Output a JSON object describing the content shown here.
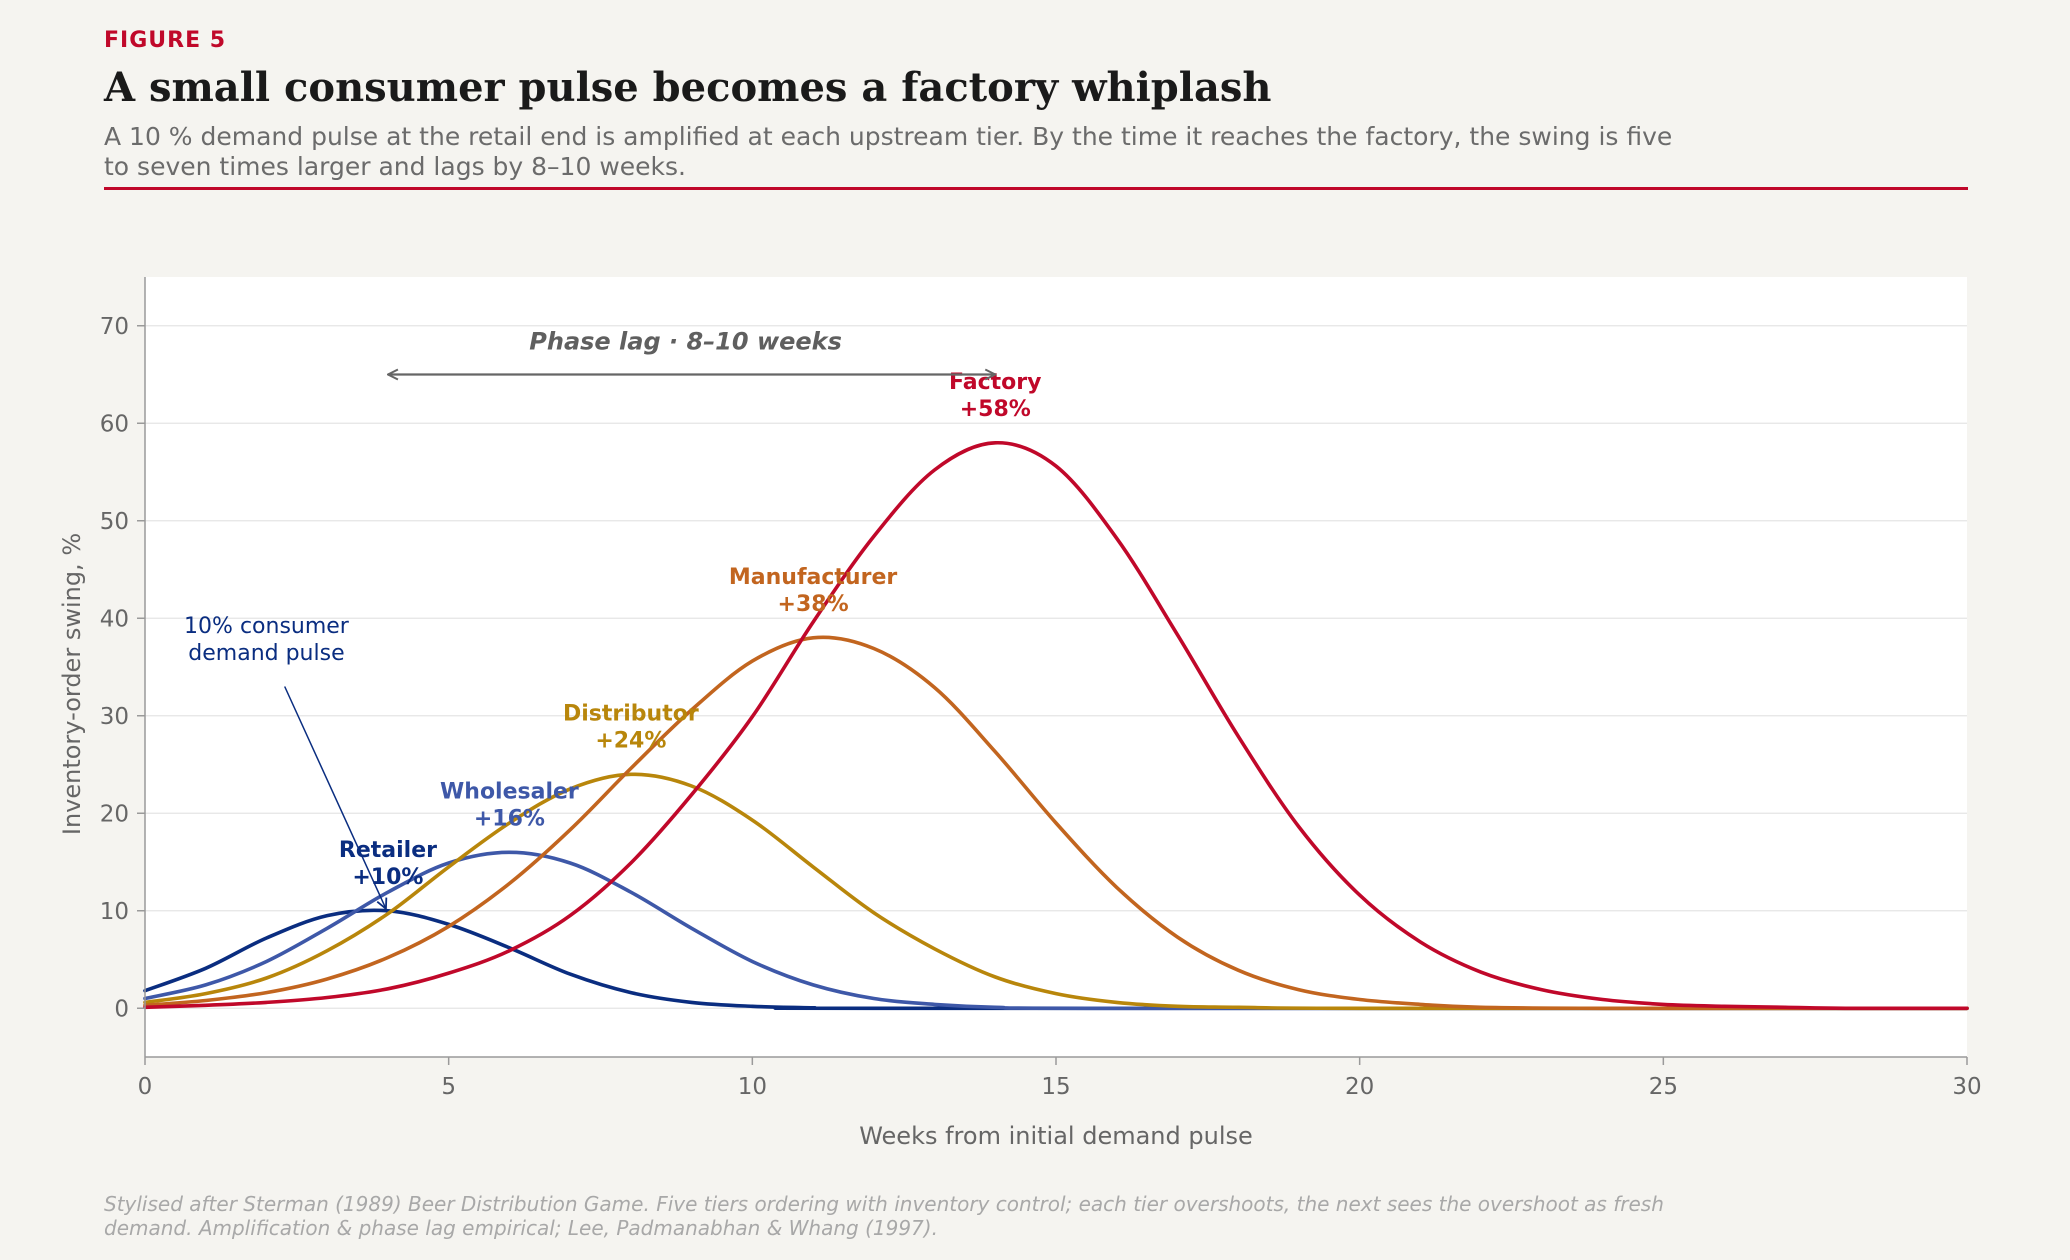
{
  "header": {
    "kicker": "FIGURE 5",
    "title": "A small consumer pulse becomes a factory whiplash",
    "subtitle": "A 10 % demand pulse at the retail end is amplified at each upstream tier. By the time it reaches the factory, the swing is five to seven times larger and lags by 8–10 weeks."
  },
  "footnote": "Stylised after Sterman (1989) Beer Distribution Game. Five tiers ordering with inventory control; each tier overshoots, the next sees the overshoot as fresh demand. Amplification & phase lag empirical; Lee, Padmanabhan & Whang (1997).",
  "chart_data": {
    "type": "line",
    "xlabel": "Weeks from initial demand pulse",
    "ylabel": "Inventory-order swing, %",
    "xlim": [
      0,
      30
    ],
    "ylim": [
      -5,
      75
    ],
    "xticks": [
      0,
      5,
      10,
      15,
      20,
      25,
      30
    ],
    "yticks": [
      0,
      10,
      20,
      30,
      40,
      50,
      60,
      70
    ],
    "grid": "horizontal",
    "series": [
      {
        "name": "Retailer",
        "label": "+10%",
        "color": "#0a2d80",
        "x": [
          0,
          1,
          2,
          3,
          4,
          5,
          6,
          7,
          8,
          9,
          10,
          11,
          12
        ],
        "y": [
          1.8,
          4.1,
          7.2,
          9.5,
          10.0,
          8.6,
          6.2,
          3.5,
          1.6,
          0.6,
          0.2,
          0.05,
          0.0
        ]
      },
      {
        "name": "Wholesaler",
        "label": "+16%",
        "color": "#3e58a8",
        "x": [
          0,
          1,
          2,
          3,
          4,
          5,
          6,
          7,
          8,
          9,
          10,
          11,
          12,
          13,
          14,
          16
        ],
        "y": [
          1.0,
          2.4,
          4.8,
          8.2,
          11.9,
          14.9,
          16.0,
          14.9,
          11.9,
          8.2,
          4.8,
          2.4,
          1.0,
          0.4,
          0.1,
          0.0
        ]
      },
      {
        "name": "Distributor",
        "label": "+24%",
        "color": "#b8860b",
        "x": [
          0,
          1,
          2,
          3,
          4,
          5,
          6,
          7,
          8,
          9,
          10,
          11,
          12,
          13,
          14,
          15,
          16,
          17,
          18,
          20
        ],
        "y": [
          0.6,
          1.5,
          3.1,
          5.9,
          9.7,
          14.5,
          19.0,
          22.5,
          24.0,
          22.8,
          19.3,
          14.5,
          9.8,
          6.1,
          3.2,
          1.5,
          0.6,
          0.2,
          0.1,
          0.0
        ]
      },
      {
        "name": "Manufacturer",
        "label": "+38%",
        "color": "#c2651f",
        "x": [
          0,
          1,
          2,
          3,
          4,
          5,
          6,
          7,
          8,
          9,
          10,
          11,
          12,
          13,
          14,
          15,
          16,
          17,
          18,
          19,
          20,
          21,
          22,
          24
        ],
        "y": [
          0.3,
          0.8,
          1.6,
          3.0,
          5.2,
          8.4,
          12.8,
          18.3,
          24.6,
          30.6,
          35.6,
          38.0,
          36.9,
          32.9,
          26.3,
          19.0,
          12.4,
          7.3,
          3.9,
          1.9,
          0.9,
          0.4,
          0.1,
          0.0
        ]
      },
      {
        "name": "Factory",
        "label": "+58%",
        "color": "#c0082a",
        "x": [
          0,
          1,
          2,
          3,
          4,
          5,
          6,
          7,
          8,
          9,
          10,
          11,
          12,
          13,
          14,
          15,
          16,
          17,
          18,
          19,
          20,
          21,
          22,
          23,
          24,
          25,
          26,
          27,
          28,
          30
        ],
        "y": [
          0.1,
          0.3,
          0.6,
          1.1,
          2.0,
          3.6,
          5.9,
          9.5,
          14.9,
          21.9,
          29.9,
          39.6,
          48.4,
          55.2,
          58.0,
          55.6,
          48.2,
          38.3,
          27.9,
          18.6,
          11.6,
          6.8,
          3.7,
          1.9,
          0.9,
          0.4,
          0.2,
          0.1,
          0.0,
          0.0
        ]
      }
    ],
    "annotations": {
      "phase_lag": {
        "text": "Phase lag · 8–10 weeks",
        "x_start": 4,
        "x_end": 14,
        "y": 65
      },
      "pulse_note": {
        "text": [
          "10% consumer",
          "demand pulse"
        ],
        "target_x": 4,
        "target_y": 10
      }
    }
  }
}
